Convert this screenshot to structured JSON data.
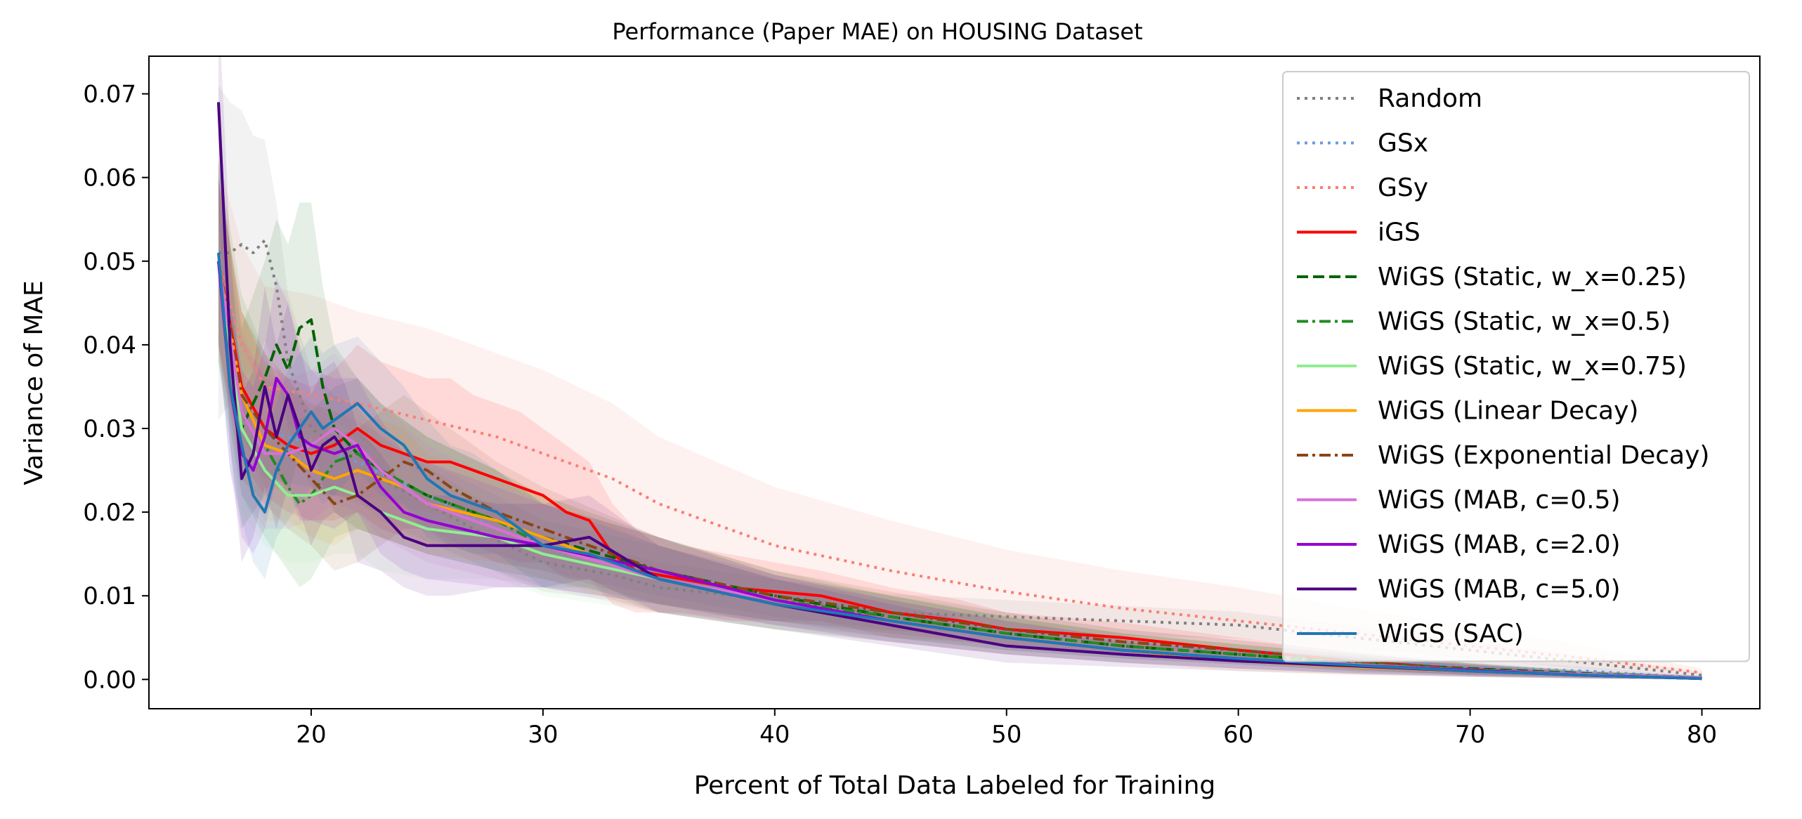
{
  "chart_data": {
    "type": "line",
    "title": "Performance (Paper MAE) on HOUSING Dataset",
    "xlabel": "Percent of Total Data Labeled for Training",
    "ylabel": "Variance of MAE",
    "xlim": [
      13,
      82.5
    ],
    "ylim": [
      -0.0035,
      0.0745
    ],
    "xticks": [
      20,
      30,
      40,
      50,
      60,
      70,
      80
    ],
    "xtick_labels": [
      "20",
      "30",
      "40",
      "50",
      "60",
      "70",
      "80"
    ],
    "yticks": [
      0.0,
      0.01,
      0.02,
      0.03,
      0.04,
      0.05,
      0.06,
      0.07
    ],
    "ytick_labels": [
      "0.00",
      "0.01",
      "0.02",
      "0.03",
      "0.04",
      "0.05",
      "0.06",
      "0.07"
    ],
    "grid": false,
    "legend_position": "upper-right",
    "shaded_bands": true,
    "series": [
      {
        "name": "Random",
        "color": "#808080",
        "dash": "dotted",
        "x": [
          16,
          16.5,
          17,
          17.5,
          18,
          18.5,
          19,
          20,
          21,
          22,
          23,
          25,
          27,
          30,
          33,
          35,
          40,
          45,
          50,
          55,
          60,
          65,
          70,
          75,
          80
        ],
        "y": [
          0.051,
          0.051,
          0.052,
          0.051,
          0.0525,
          0.047,
          0.038,
          0.03,
          0.028,
          0.027,
          0.024,
          0.021,
          0.018,
          0.014,
          0.0125,
          0.011,
          0.0095,
          0.008,
          0.0075,
          0.007,
          0.0065,
          0.005,
          0.0035,
          0.002,
          0.0005
        ],
        "band": [
          0.02,
          0.018,
          0.016,
          0.014,
          0.012,
          0.01,
          0.008,
          0.007,
          0.006,
          0.0055,
          0.005,
          0.0045,
          0.004,
          0.0035,
          0.003,
          0.003,
          0.0025,
          0.0022,
          0.002,
          0.0018,
          0.0016,
          0.0014,
          0.001,
          0.0008,
          0.0004
        ]
      },
      {
        "name": "GSx",
        "color": "#6a9be3",
        "dash": "dotted",
        "x": [
          16,
          17,
          18,
          20,
          22,
          25,
          28,
          30,
          35,
          40,
          45,
          50,
          55,
          60,
          65,
          70,
          75,
          80
        ],
        "y": [
          0.05,
          0.035,
          0.03,
          0.028,
          0.026,
          0.022,
          0.018,
          0.016,
          0.013,
          0.01,
          0.008,
          0.006,
          0.0045,
          0.0035,
          0.0025,
          0.0015,
          0.001,
          0.0002
        ],
        "band": [
          0.006,
          0.006,
          0.006,
          0.005,
          0.005,
          0.004,
          0.004,
          0.003,
          0.003,
          0.0025,
          0.002,
          0.002,
          0.0015,
          0.0012,
          0.001,
          0.0008,
          0.0005,
          0.0002
        ]
      },
      {
        "name": "GSy",
        "color": "#fa7f72",
        "dash": "dotted",
        "x": [
          16,
          17,
          18,
          20,
          22,
          25,
          28,
          30,
          33,
          35,
          40,
          45,
          50,
          55,
          60,
          65,
          70,
          75,
          80
        ],
        "y": [
          0.05,
          0.04,
          0.035,
          0.034,
          0.033,
          0.031,
          0.029,
          0.027,
          0.024,
          0.021,
          0.016,
          0.013,
          0.0105,
          0.0085,
          0.007,
          0.0055,
          0.004,
          0.0025,
          0.0008
        ],
        "band": [
          0.012,
          0.012,
          0.012,
          0.012,
          0.011,
          0.011,
          0.01,
          0.01,
          0.009,
          0.008,
          0.007,
          0.006,
          0.005,
          0.0045,
          0.004,
          0.003,
          0.0025,
          0.0015,
          0.0005
        ]
      },
      {
        "name": "iGS",
        "color": "#ff0000",
        "dash": "solid",
        "x": [
          16,
          17,
          18,
          19,
          20,
          21,
          22,
          23,
          24,
          25,
          26,
          27,
          28,
          29,
          30,
          31,
          32,
          33,
          34,
          36,
          38,
          40,
          42,
          45,
          48,
          50,
          55,
          60,
          65,
          70,
          75,
          80
        ],
        "y": [
          0.05,
          0.035,
          0.03,
          0.028,
          0.027,
          0.028,
          0.03,
          0.028,
          0.027,
          0.026,
          0.026,
          0.025,
          0.024,
          0.023,
          0.022,
          0.02,
          0.019,
          0.015,
          0.013,
          0.012,
          0.011,
          0.0105,
          0.01,
          0.008,
          0.007,
          0.006,
          0.005,
          0.0035,
          0.0022,
          0.0012,
          0.0006,
          0.0002
        ],
        "band": [
          0.01,
          0.009,
          0.008,
          0.008,
          0.008,
          0.009,
          0.01,
          0.01,
          0.01,
          0.01,
          0.01,
          0.009,
          0.009,
          0.009,
          0.008,
          0.008,
          0.007,
          0.006,
          0.005,
          0.004,
          0.004,
          0.0035,
          0.003,
          0.003,
          0.0025,
          0.002,
          0.0018,
          0.0015,
          0.001,
          0.0007,
          0.0004,
          0.0002
        ]
      },
      {
        "name": "WiGS (Static, w_x=0.25)",
        "color": "#006400",
        "dash": "dashed",
        "x": [
          16,
          16.5,
          17,
          17.5,
          18,
          18.5,
          19,
          19.5,
          20,
          20.5,
          21,
          22,
          23,
          25,
          28,
          30,
          35,
          40,
          45,
          50,
          55,
          60,
          65,
          70,
          75,
          80
        ],
        "y": [
          0.05,
          0.04,
          0.03,
          0.033,
          0.036,
          0.04,
          0.037,
          0.042,
          0.043,
          0.035,
          0.03,
          0.027,
          0.025,
          0.022,
          0.019,
          0.017,
          0.013,
          0.01,
          0.0075,
          0.0055,
          0.004,
          0.003,
          0.002,
          0.0013,
          0.0007,
          0.0002
        ],
        "band": [
          0.012,
          0.012,
          0.012,
          0.013,
          0.014,
          0.015,
          0.015,
          0.015,
          0.014,
          0.012,
          0.01,
          0.009,
          0.008,
          0.007,
          0.006,
          0.005,
          0.004,
          0.003,
          0.0025,
          0.002,
          0.0015,
          0.0012,
          0.001,
          0.0007,
          0.0004,
          0.0002
        ]
      },
      {
        "name": "WiGS (Static, w_x=0.5)",
        "color": "#228b22",
        "dash": "dashdot",
        "x": [
          16,
          17,
          18,
          19,
          19.5,
          20,
          21,
          22,
          23,
          25,
          28,
          30,
          35,
          40,
          45,
          50,
          55,
          60,
          65,
          70,
          75,
          80
        ],
        "y": [
          0.05,
          0.034,
          0.028,
          0.023,
          0.021,
          0.022,
          0.026,
          0.027,
          0.025,
          0.022,
          0.019,
          0.016,
          0.013,
          0.0095,
          0.0075,
          0.0055,
          0.004,
          0.003,
          0.002,
          0.0012,
          0.0006,
          0.0002
        ],
        "band": [
          0.012,
          0.012,
          0.011,
          0.01,
          0.01,
          0.01,
          0.009,
          0.009,
          0.008,
          0.007,
          0.006,
          0.005,
          0.004,
          0.003,
          0.0025,
          0.002,
          0.0015,
          0.0012,
          0.001,
          0.0007,
          0.0004,
          0.0002
        ]
      },
      {
        "name": "WiGS (Static, w_x=0.75)",
        "color": "#90ee90",
        "dash": "solid",
        "x": [
          16,
          17,
          18,
          19,
          20,
          21,
          22,
          23,
          25,
          28,
          30,
          35,
          40,
          45,
          50,
          55,
          60,
          65,
          70,
          75,
          80
        ],
        "y": [
          0.05,
          0.03,
          0.025,
          0.022,
          0.022,
          0.023,
          0.022,
          0.02,
          0.018,
          0.017,
          0.015,
          0.012,
          0.009,
          0.007,
          0.005,
          0.0035,
          0.0025,
          0.0018,
          0.0011,
          0.0006,
          0.0002
        ],
        "band": [
          0.01,
          0.01,
          0.009,
          0.008,
          0.008,
          0.008,
          0.007,
          0.007,
          0.006,
          0.005,
          0.005,
          0.004,
          0.003,
          0.0025,
          0.002,
          0.0015,
          0.0012,
          0.001,
          0.0007,
          0.0004,
          0.0002
        ]
      },
      {
        "name": "WiGS (Linear Decay)",
        "color": "#ffa500",
        "dash": "solid",
        "x": [
          16,
          17,
          18,
          19,
          20,
          21,
          22,
          23,
          24,
          25,
          28,
          30,
          35,
          40,
          45,
          50,
          55,
          60,
          65,
          70,
          75,
          80
        ],
        "y": [
          0.05,
          0.034,
          0.028,
          0.027,
          0.025,
          0.024,
          0.025,
          0.024,
          0.023,
          0.021,
          0.019,
          0.017,
          0.012,
          0.009,
          0.007,
          0.005,
          0.0035,
          0.0022,
          0.0015,
          0.001,
          0.0005,
          0.0001
        ],
        "band": [
          0.01,
          0.01,
          0.009,
          0.008,
          0.008,
          0.008,
          0.007,
          0.007,
          0.007,
          0.006,
          0.005,
          0.005,
          0.004,
          0.003,
          0.0025,
          0.002,
          0.0015,
          0.0012,
          0.001,
          0.0007,
          0.0004,
          0.0002
        ]
      },
      {
        "name": "WiGS (Exponential Decay)",
        "color": "#8b4513",
        "dash": "dashdot",
        "x": [
          16,
          17,
          18,
          19,
          20,
          21,
          22,
          23,
          24,
          25,
          26,
          28,
          30,
          35,
          40,
          45,
          50,
          55,
          60,
          65,
          70,
          75,
          80
        ],
        "y": [
          0.05,
          0.034,
          0.03,
          0.027,
          0.024,
          0.021,
          0.022,
          0.024,
          0.026,
          0.025,
          0.023,
          0.02,
          0.018,
          0.013,
          0.01,
          0.008,
          0.006,
          0.0045,
          0.0035,
          0.0022,
          0.0012,
          0.0006,
          0.0002
        ],
        "band": [
          0.01,
          0.01,
          0.009,
          0.009,
          0.008,
          0.008,
          0.008,
          0.008,
          0.008,
          0.007,
          0.007,
          0.006,
          0.005,
          0.004,
          0.003,
          0.0025,
          0.002,
          0.0015,
          0.0012,
          0.001,
          0.0007,
          0.0004,
          0.0002
        ]
      },
      {
        "name": "WiGS (MAB, c=0.5)",
        "color": "#da70d6",
        "dash": "solid",
        "x": [
          16,
          17,
          18,
          19,
          20,
          21,
          22,
          23,
          25,
          28,
          30,
          35,
          40,
          45,
          50,
          55,
          60,
          65,
          70,
          75,
          80
        ],
        "y": [
          0.05,
          0.032,
          0.027,
          0.027,
          0.028,
          0.03,
          0.028,
          0.025,
          0.021,
          0.018,
          0.016,
          0.012,
          0.0095,
          0.007,
          0.005,
          0.0035,
          0.0025,
          0.0018,
          0.0011,
          0.0006,
          0.0002
        ],
        "band": [
          0.01,
          0.01,
          0.009,
          0.009,
          0.009,
          0.009,
          0.008,
          0.008,
          0.007,
          0.006,
          0.005,
          0.004,
          0.003,
          0.0025,
          0.002,
          0.0015,
          0.0012,
          0.001,
          0.0007,
          0.0004,
          0.0002
        ]
      },
      {
        "name": "WiGS (MAB, c=2.0)",
        "color": "#9400d3",
        "dash": "solid",
        "x": [
          16,
          16.5,
          17,
          17.5,
          18,
          18.5,
          19,
          19.5,
          20,
          21,
          22,
          23,
          24,
          25,
          28,
          30,
          35,
          40,
          45,
          50,
          55,
          60,
          65,
          70,
          75,
          80
        ],
        "y": [
          0.05,
          0.035,
          0.027,
          0.025,
          0.029,
          0.036,
          0.034,
          0.029,
          0.028,
          0.027,
          0.028,
          0.023,
          0.02,
          0.019,
          0.017,
          0.016,
          0.013,
          0.0095,
          0.007,
          0.005,
          0.0035,
          0.0025,
          0.0017,
          0.0011,
          0.0005,
          0.0001
        ],
        "band": [
          0.01,
          0.01,
          0.01,
          0.01,
          0.011,
          0.012,
          0.011,
          0.01,
          0.009,
          0.009,
          0.008,
          0.008,
          0.007,
          0.007,
          0.006,
          0.005,
          0.004,
          0.003,
          0.0025,
          0.002,
          0.0015,
          0.0012,
          0.001,
          0.0007,
          0.0004,
          0.0002
        ]
      },
      {
        "name": "WiGS (MAB, c=5.0)",
        "color": "#4b0082",
        "dash": "solid",
        "x": [
          16,
          16.5,
          17,
          17.5,
          18,
          18.5,
          19,
          19.5,
          20,
          20.5,
          21,
          21.5,
          22,
          23,
          24,
          25,
          26,
          28,
          30,
          32,
          35,
          40,
          45,
          50,
          55,
          60,
          65,
          70,
          75,
          80
        ],
        "y": [
          0.069,
          0.04,
          0.024,
          0.027,
          0.035,
          0.029,
          0.034,
          0.03,
          0.025,
          0.028,
          0.029,
          0.027,
          0.022,
          0.02,
          0.017,
          0.016,
          0.016,
          0.016,
          0.016,
          0.017,
          0.012,
          0.009,
          0.0065,
          0.004,
          0.003,
          0.0022,
          0.0016,
          0.001,
          0.0005,
          0.0001
        ],
        "band": [
          0.012,
          0.012,
          0.01,
          0.01,
          0.012,
          0.011,
          0.011,
          0.01,
          0.009,
          0.009,
          0.009,
          0.008,
          0.008,
          0.007,
          0.006,
          0.006,
          0.006,
          0.005,
          0.005,
          0.005,
          0.004,
          0.003,
          0.0025,
          0.002,
          0.0015,
          0.0012,
          0.001,
          0.0007,
          0.0004,
          0.0002
        ]
      },
      {
        "name": "WiGS (SAC)",
        "color": "#1f77b4",
        "dash": "solid",
        "x": [
          16,
          16.5,
          17,
          17.5,
          18,
          18.5,
          19,
          19.5,
          20,
          20.5,
          21,
          22,
          23,
          24,
          25,
          26,
          27,
          28,
          30,
          32,
          35,
          40,
          45,
          50,
          55,
          60,
          65,
          70,
          75,
          80
        ],
        "y": [
          0.051,
          0.035,
          0.028,
          0.022,
          0.02,
          0.025,
          0.028,
          0.03,
          0.032,
          0.03,
          0.031,
          0.033,
          0.03,
          0.028,
          0.024,
          0.022,
          0.021,
          0.02,
          0.016,
          0.015,
          0.012,
          0.009,
          0.007,
          0.005,
          0.0035,
          0.0025,
          0.0017,
          0.001,
          0.0005,
          0.0001
        ],
        "band": [
          0.01,
          0.01,
          0.009,
          0.008,
          0.008,
          0.008,
          0.009,
          0.009,
          0.009,
          0.009,
          0.009,
          0.008,
          0.008,
          0.007,
          0.007,
          0.006,
          0.006,
          0.005,
          0.005,
          0.004,
          0.004,
          0.003,
          0.0025,
          0.002,
          0.0015,
          0.0012,
          0.001,
          0.0007,
          0.0004,
          0.0002
        ]
      }
    ]
  }
}
